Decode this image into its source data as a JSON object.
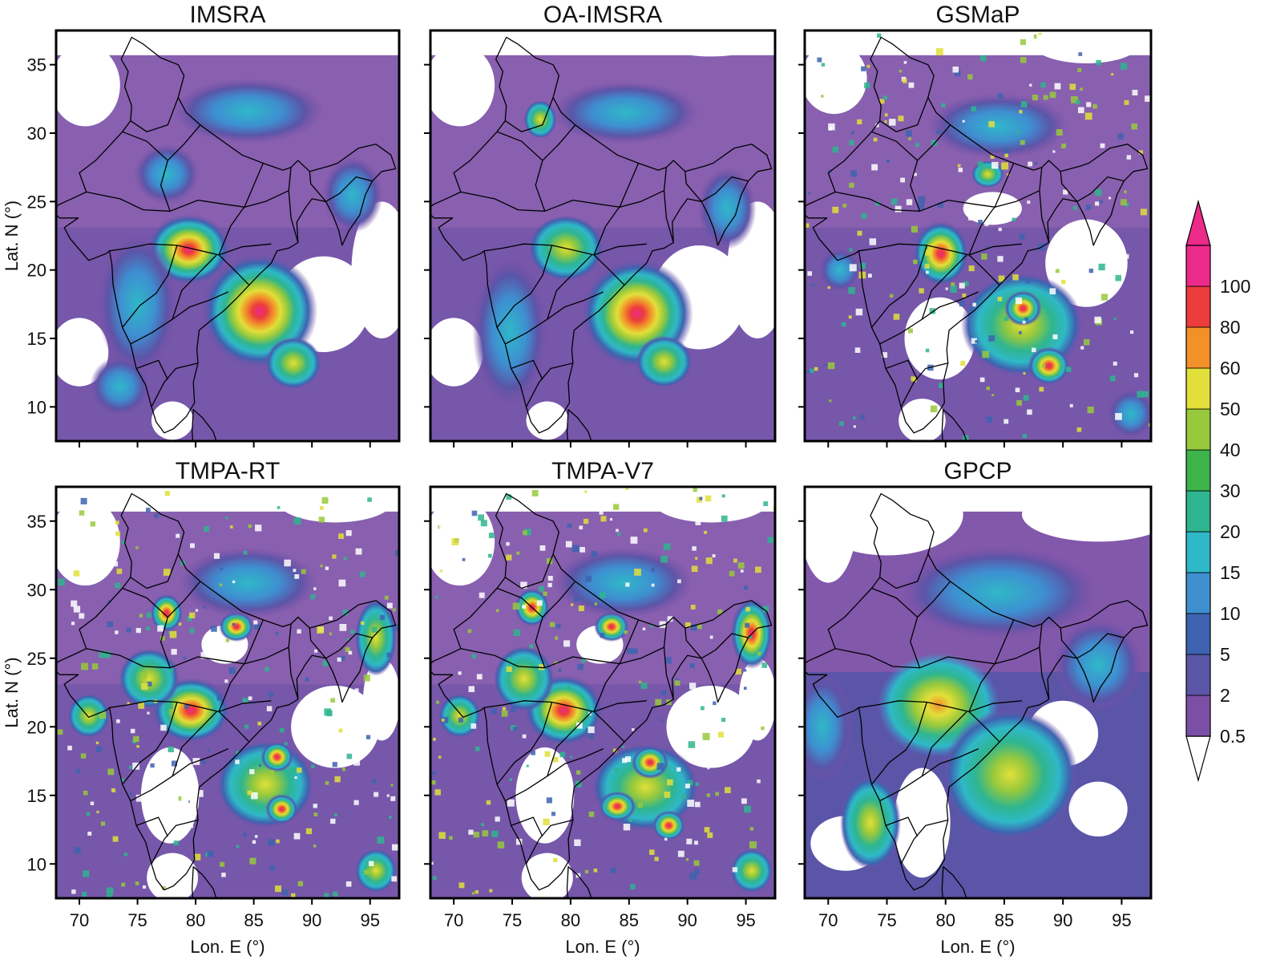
{
  "panels": [
    {
      "title": "IMSRA"
    },
    {
      "title": "OA-IMSRA"
    },
    {
      "title": "GSMaP"
    },
    {
      "title": "TMPA-RT"
    },
    {
      "title": "TMPA-V7"
    },
    {
      "title": "GPCP"
    }
  ],
  "axes": {
    "xlabel": "Lon. E (°)",
    "ylabel": "Lat. N (°)",
    "x_ticks": [
      "70",
      "75",
      "80",
      "85",
      "90",
      "95"
    ],
    "y_ticks": [
      "35",
      "30",
      "25",
      "20",
      "15",
      "10"
    ],
    "x_range": [
      68,
      97.5
    ],
    "y_range": [
      7.5,
      37.5
    ]
  },
  "colorbar": {
    "levels": [
      "0.5",
      "2",
      "5",
      "10",
      "15",
      "20",
      "30",
      "40",
      "50",
      "60",
      "80",
      "100"
    ],
    "colors": [
      "#7b4fa6",
      "#5b55a8",
      "#3d63b0",
      "#3e8fd0",
      "#2fb8c8",
      "#2fb58f",
      "#3db34a",
      "#98c93c",
      "#e2df3a",
      "#f2902a",
      "#ec3c3c",
      "#ec2a8a"
    ],
    "under_color": "#ffffff",
    "extend": "both"
  }
}
